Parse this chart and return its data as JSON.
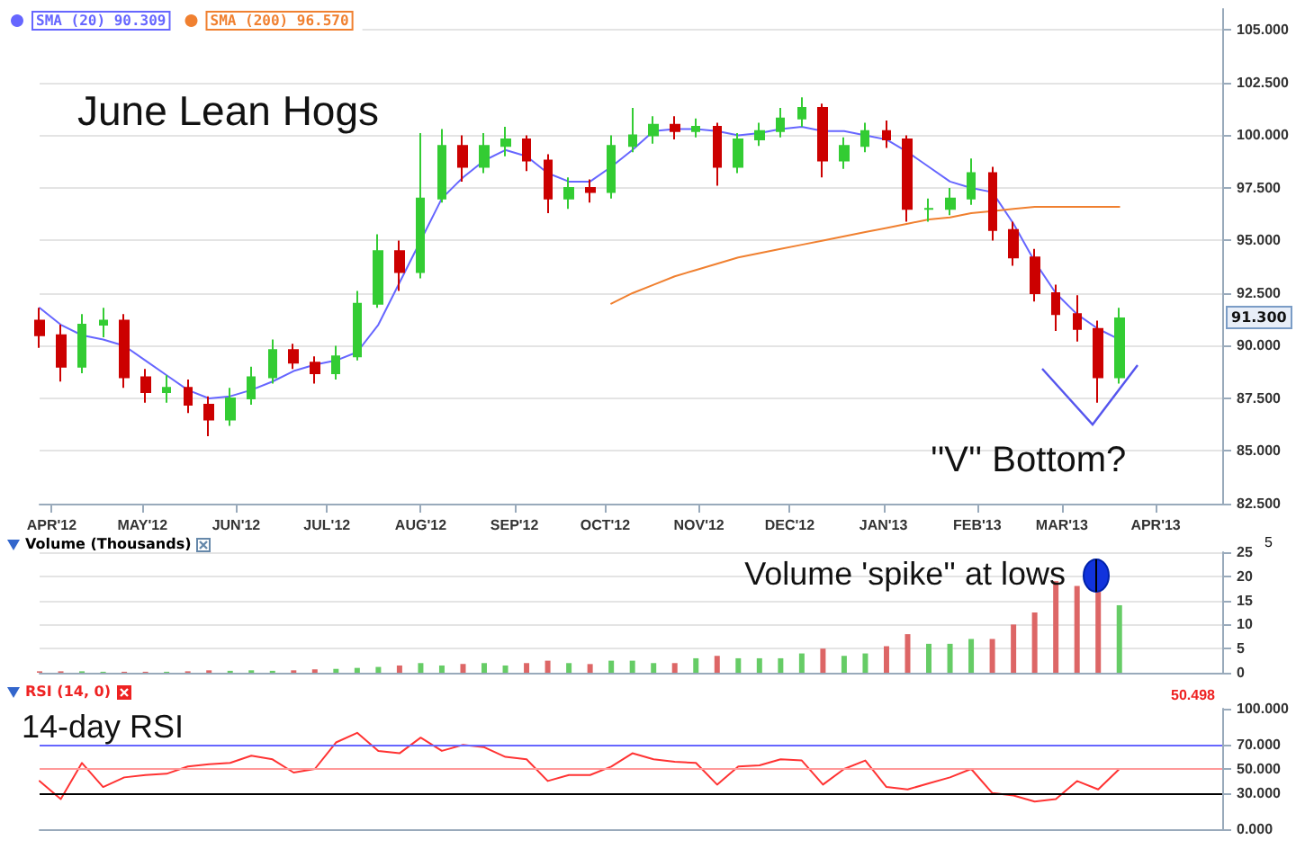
{
  "chart_data": [
    {
      "type": "candlestick",
      "title": "June Lean Hogs",
      "annotations": [
        "''V'' Bottom?",
        "91.300"
      ],
      "x": [
        "2012-03-28",
        "2012-04-04",
        "2012-04-11",
        "2012-04-18",
        "2012-04-25",
        "2012-05-02",
        "2012-05-09",
        "2012-05-16",
        "2012-05-23",
        "2012-05-30",
        "2012-06-06",
        "2012-06-13",
        "2012-06-20",
        "2012-06-27",
        "2012-07-04",
        "2012-07-11",
        "2012-07-18",
        "2012-07-25",
        "2012-08-01",
        "2012-08-08",
        "2012-08-15",
        "2012-08-22",
        "2012-08-29",
        "2012-09-05",
        "2012-09-12",
        "2012-09-19",
        "2012-09-26",
        "2012-10-03",
        "2012-10-10",
        "2012-10-17",
        "2012-10-24",
        "2012-10-31",
        "2012-11-07",
        "2012-11-14",
        "2012-11-21",
        "2012-11-28",
        "2012-12-05",
        "2012-12-12",
        "2012-12-19",
        "2012-12-26",
        "2013-01-02",
        "2013-01-09",
        "2013-01-16",
        "2013-01-23",
        "2013-01-30",
        "2013-02-06",
        "2013-02-13",
        "2013-02-20",
        "2013-02-27",
        "2013-03-06",
        "2013-03-13",
        "2013-03-20"
      ],
      "ohlc": [
        [
          91.2,
          91.8,
          89.9,
          90.5
        ],
        [
          90.5,
          91.0,
          88.3,
          89.0
        ],
        [
          89.0,
          91.5,
          88.7,
          91.0
        ],
        [
          91.0,
          91.8,
          90.4,
          91.2
        ],
        [
          91.2,
          91.5,
          88.0,
          88.5
        ],
        [
          88.5,
          88.9,
          87.3,
          87.8
        ],
        [
          87.8,
          88.6,
          87.3,
          88.0
        ],
        [
          88.0,
          88.4,
          86.8,
          87.2
        ],
        [
          87.2,
          87.6,
          85.7,
          86.5
        ],
        [
          86.5,
          88.0,
          86.2,
          87.5
        ],
        [
          87.5,
          89.0,
          87.2,
          88.5
        ],
        [
          88.5,
          90.3,
          88.2,
          89.8
        ],
        [
          89.8,
          90.1,
          88.9,
          89.2
        ],
        [
          89.2,
          89.5,
          88.2,
          88.7
        ],
        [
          88.7,
          90.0,
          88.4,
          89.5
        ],
        [
          89.5,
          92.6,
          89.3,
          92.0
        ],
        [
          92.0,
          95.3,
          91.8,
          94.5
        ],
        [
          94.5,
          95.0,
          92.6,
          93.5
        ],
        [
          93.5,
          100.1,
          93.2,
          97.0
        ],
        [
          97.0,
          100.3,
          96.8,
          99.5
        ],
        [
          99.5,
          100.0,
          97.8,
          98.5
        ],
        [
          98.5,
          100.1,
          98.2,
          99.5
        ],
        [
          99.5,
          100.4,
          99.0,
          99.8
        ],
        [
          99.8,
          100.0,
          98.3,
          98.8
        ],
        [
          98.8,
          99.1,
          96.3,
          97.0
        ],
        [
          97.0,
          98.0,
          96.5,
          97.5
        ],
        [
          97.5,
          97.9,
          96.8,
          97.3
        ],
        [
          97.3,
          100.0,
          97.0,
          99.5
        ],
        [
          99.5,
          101.3,
          99.2,
          100.0
        ],
        [
          100.0,
          100.9,
          99.6,
          100.5
        ],
        [
          100.5,
          100.9,
          99.8,
          100.2
        ],
        [
          100.2,
          100.8,
          99.9,
          100.4
        ],
        [
          100.4,
          100.6,
          97.6,
          98.5
        ],
        [
          98.5,
          100.1,
          98.2,
          99.8
        ],
        [
          99.8,
          100.6,
          99.5,
          100.2
        ],
        [
          100.2,
          101.3,
          99.9,
          100.8
        ],
        [
          100.8,
          101.8,
          100.4,
          101.3
        ],
        [
          101.3,
          101.5,
          98.0,
          98.8
        ],
        [
          98.8,
          99.9,
          98.4,
          99.5
        ],
        [
          99.5,
          100.6,
          99.2,
          100.2
        ],
        [
          100.2,
          100.7,
          99.4,
          99.8
        ],
        [
          99.8,
          100.0,
          95.9,
          96.5
        ],
        [
          96.5,
          97.0,
          95.9,
          96.5
        ],
        [
          96.5,
          97.5,
          96.2,
          97.0
        ],
        [
          97.0,
          98.9,
          96.7,
          98.2
        ],
        [
          98.2,
          98.5,
          95.0,
          95.5
        ],
        [
          95.5,
          95.9,
          93.8,
          94.2
        ],
        [
          94.2,
          94.6,
          92.1,
          92.5
        ],
        [
          92.5,
          92.9,
          90.7,
          91.5
        ],
        [
          91.5,
          92.4,
          90.2,
          90.8
        ],
        [
          90.8,
          91.2,
          87.3,
          88.5
        ],
        [
          88.5,
          91.8,
          88.2,
          91.3
        ]
      ],
      "colors": [
        "#cc0000",
        "#cc0000",
        "#33cc33",
        "#33cc33",
        "#cc0000",
        "#cc0000",
        "#33cc33",
        "#cc0000",
        "#cc0000",
        "#33cc33",
        "#33cc33",
        "#33cc33",
        "#cc0000",
        "#cc0000",
        "#33cc33",
        "#33cc33",
        "#33cc33",
        "#cc0000",
        "#33cc33",
        "#33cc33",
        "#cc0000",
        "#33cc33",
        "#33cc33",
        "#cc0000",
        "#cc0000",
        "#33cc33",
        "#cc0000",
        "#33cc33",
        "#33cc33",
        "#33cc33",
        "#cc0000",
        "#33cc33",
        "#cc0000",
        "#33cc33",
        "#33cc33",
        "#33cc33",
        "#33cc33",
        "#cc0000",
        "#33cc33",
        "#33cc33",
        "#cc0000",
        "#cc0000",
        "#33cc33",
        "#33cc33",
        "#33cc33",
        "#cc0000",
        "#cc0000",
        "#cc0000",
        "#cc0000",
        "#cc0000",
        "#cc0000",
        "#33cc33"
      ],
      "series": [
        {
          "name": "SMA (20) 90.309",
          "type": "line",
          "color": "#6666ff",
          "values": [
            91.8,
            91.0,
            90.5,
            90.3,
            90.0,
            89.3,
            88.6,
            87.9,
            87.5,
            87.6,
            87.9,
            88.3,
            88.8,
            89.1,
            89.3,
            89.7,
            91.0,
            93.0,
            95.0,
            97.0,
            98.0,
            98.8,
            99.3,
            99.0,
            98.2,
            97.8,
            97.8,
            98.5,
            99.3,
            100.2,
            100.3,
            100.3,
            100.2,
            100.0,
            100.1,
            100.3,
            100.4,
            100.2,
            100.2,
            100.0,
            99.8,
            99.2,
            98.5,
            97.8,
            97.5,
            97.3,
            95.8,
            94.0,
            92.5,
            91.5,
            90.8,
            90.3
          ]
        },
        {
          "name": "SMA (200) 96.570",
          "type": "line",
          "color": "#f08030",
          "values": [
            null,
            null,
            null,
            null,
            null,
            null,
            null,
            null,
            null,
            null,
            null,
            null,
            null,
            null,
            null,
            null,
            null,
            null,
            null,
            null,
            null,
            null,
            null,
            null,
            null,
            null,
            null,
            92.0,
            92.5,
            92.9,
            93.3,
            93.6,
            93.9,
            94.2,
            94.4,
            94.6,
            94.8,
            95.0,
            95.2,
            95.4,
            95.6,
            95.8,
            96.0,
            96.1,
            96.3,
            96.4,
            96.5,
            96.6,
            96.6,
            96.6,
            96.6,
            96.6
          ]
        }
      ],
      "xlim": [
        "2012-03-28",
        "2013-04-23"
      ],
      "xticks": [
        {
          "value": "2012-04-01",
          "label": "APR'12"
        },
        {
          "value": "2012-05-01",
          "label": "MAY'12"
        },
        {
          "value": "2012-06-01",
          "label": "JUN'12"
        },
        {
          "value": "2012-07-01",
          "label": "JUL'12"
        },
        {
          "value": "2012-08-01",
          "label": "AUG'12"
        },
        {
          "value": "2012-09-01",
          "label": "SEP'12"
        },
        {
          "value": "2012-10-01",
          "label": "OCT'12"
        },
        {
          "value": "2012-11-01",
          "label": "NOV'12"
        },
        {
          "value": "2012-12-01",
          "label": "DEC'12"
        },
        {
          "value": "2013-01-01",
          "label": "JAN'13"
        },
        {
          "value": "2013-02-01",
          "label": "FEB'13"
        },
        {
          "value": "2013-03-01",
          "label": "MAR'13"
        },
        {
          "value": "2013-04-01",
          "label": "APR'13"
        }
      ],
      "ylim": [
        82.5,
        106
      ],
      "yticks": [
        {
          "value": 82.5,
          "label": "82.500"
        },
        {
          "value": 85,
          "label": "85.000"
        },
        {
          "value": 87.5,
          "label": "87.500"
        },
        {
          "value": 90,
          "label": "90.000"
        },
        {
          "value": 92.5,
          "label": "92.500"
        },
        {
          "value": 95,
          "label": "95.000"
        },
        {
          "value": 97.5,
          "label": "97.500"
        },
        {
          "value": 100,
          "label": "100.000"
        },
        {
          "value": 102.5,
          "label": "102.500"
        },
        {
          "value": 105,
          "label": "105.000"
        }
      ],
      "grid": "y",
      "legend": "top left",
      "marker": "none"
    },
    {
      "type": "bar",
      "title": "Volume (Thousands)",
      "annotations": [
        "Volume 'spike'' at lows",
        "5"
      ],
      "x": [
        "2012-03-28",
        "2012-04-04",
        "2012-04-11",
        "2012-04-18",
        "2012-04-25",
        "2012-05-02",
        "2012-05-09",
        "2012-05-16",
        "2012-05-23",
        "2012-05-30",
        "2012-06-06",
        "2012-06-13",
        "2012-06-20",
        "2012-06-27",
        "2012-07-04",
        "2012-07-11",
        "2012-07-18",
        "2012-07-25",
        "2012-08-01",
        "2012-08-08",
        "2012-08-15",
        "2012-08-22",
        "2012-08-29",
        "2012-09-05",
        "2012-09-12",
        "2012-09-19",
        "2012-09-26",
        "2012-10-03",
        "2012-10-10",
        "2012-10-17",
        "2012-10-24",
        "2012-10-31",
        "2012-11-07",
        "2012-11-14",
        "2012-11-21",
        "2012-11-28",
        "2012-12-05",
        "2012-12-12",
        "2012-12-19",
        "2012-12-26",
        "2013-01-02",
        "2013-01-09",
        "2013-01-16",
        "2013-01-23",
        "2013-01-30",
        "2013-02-06",
        "2013-02-13",
        "2013-02-20",
        "2013-02-27",
        "2013-03-06",
        "2013-03-13",
        "2013-03-20"
      ],
      "values": [
        0.3,
        0.3,
        0.3,
        0.2,
        0.2,
        0.2,
        0.2,
        0.3,
        0.5,
        0.4,
        0.5,
        0.4,
        0.5,
        0.7,
        0.8,
        1.0,
        1.2,
        1.5,
        2.0,
        1.5,
        1.8,
        2.0,
        1.5,
        2.0,
        2.5,
        2.0,
        1.8,
        2.5,
        2.5,
        2.0,
        2.0,
        3.0,
        3.5,
        3.0,
        3.0,
        3.0,
        4.0,
        5.0,
        3.5,
        4.0,
        5.5,
        8.0,
        6.0,
        6.0,
        7.0,
        7.0,
        10.0,
        12.5,
        19.0,
        18.0,
        17.0,
        14.0
      ],
      "colors": [
        "#dd6666",
        "#dd6666",
        "#66cc66",
        "#66cc66",
        "#dd6666",
        "#dd6666",
        "#66cc66",
        "#dd6666",
        "#dd6666",
        "#66cc66",
        "#66cc66",
        "#66cc66",
        "#dd6666",
        "#dd6666",
        "#66cc66",
        "#66cc66",
        "#66cc66",
        "#dd6666",
        "#66cc66",
        "#66cc66",
        "#dd6666",
        "#66cc66",
        "#66cc66",
        "#dd6666",
        "#dd6666",
        "#66cc66",
        "#dd6666",
        "#66cc66",
        "#66cc66",
        "#66cc66",
        "#dd6666",
        "#66cc66",
        "#dd6666",
        "#66cc66",
        "#66cc66",
        "#66cc66",
        "#66cc66",
        "#dd6666",
        "#66cc66",
        "#66cc66",
        "#dd6666",
        "#dd6666",
        "#66cc66",
        "#66cc66",
        "#66cc66",
        "#dd6666",
        "#dd6666",
        "#dd6666",
        "#dd6666",
        "#dd6666",
        "#dd6666",
        "#66cc66"
      ],
      "xlim": [
        "2012-03-28",
        "2013-04-23"
      ],
      "ylim": [
        0,
        25
      ],
      "yticks": [
        0,
        5,
        10,
        15,
        20,
        25
      ],
      "grid": "y",
      "tick_labels": "y"
    },
    {
      "type": "line",
      "title": "RSI (14, 0)",
      "annotations": [
        "14-day RSI",
        "50.498"
      ],
      "color": "#ff3333",
      "x": [
        "2012-03-28",
        "2012-04-04",
        "2012-04-11",
        "2012-04-18",
        "2012-04-25",
        "2012-05-02",
        "2012-05-09",
        "2012-05-16",
        "2012-05-23",
        "2012-05-30",
        "2012-06-06",
        "2012-06-13",
        "2012-06-20",
        "2012-06-27",
        "2012-07-04",
        "2012-07-11",
        "2012-07-18",
        "2012-07-25",
        "2012-08-01",
        "2012-08-08",
        "2012-08-15",
        "2012-08-22",
        "2012-08-29",
        "2012-09-05",
        "2012-09-12",
        "2012-09-19",
        "2012-09-26",
        "2012-10-03",
        "2012-10-10",
        "2012-10-17",
        "2012-10-24",
        "2012-10-31",
        "2012-11-07",
        "2012-11-14",
        "2012-11-21",
        "2012-11-28",
        "2012-12-05",
        "2012-12-12",
        "2012-12-19",
        "2012-12-26",
        "2013-01-02",
        "2013-01-09",
        "2013-01-16",
        "2013-01-23",
        "2013-01-30",
        "2013-02-06",
        "2013-02-13",
        "2013-02-20",
        "2013-02-27",
        "2013-03-06",
        "2013-03-13",
        "2013-03-20"
      ],
      "values": [
        40,
        25,
        55,
        35,
        43,
        45,
        46,
        52,
        54,
        55,
        61,
        58,
        47,
        50,
        72,
        80,
        65,
        63,
        76,
        65,
        70,
        68,
        60,
        58,
        40,
        45,
        45,
        52,
        63,
        58,
        56,
        55,
        37,
        52,
        53,
        58,
        57,
        37,
        50,
        57,
        35,
        33,
        38,
        43,
        50,
        30,
        28,
        23,
        25,
        40,
        33,
        50
      ],
      "ref_lines": [
        {
          "axis": "y",
          "value": 70,
          "color": "#6666ff"
        },
        {
          "axis": "y",
          "value": 50,
          "color": "#ff9999"
        },
        {
          "axis": "y",
          "value": 30,
          "color": "#000000"
        }
      ],
      "xlim": [
        "2012-03-28",
        "2013-04-23"
      ],
      "ylim": [
        0,
        100
      ],
      "yticks": [
        {
          "value": 0,
          "label": "0.000"
        },
        {
          "value": 30,
          "label": "30.000"
        },
        {
          "value": 50,
          "label": "50.000"
        },
        {
          "value": 70,
          "label": "70.000"
        },
        {
          "value": 100,
          "label": "100.000"
        }
      ],
      "tick_labels": "y",
      "marker": "none"
    }
  ]
}
